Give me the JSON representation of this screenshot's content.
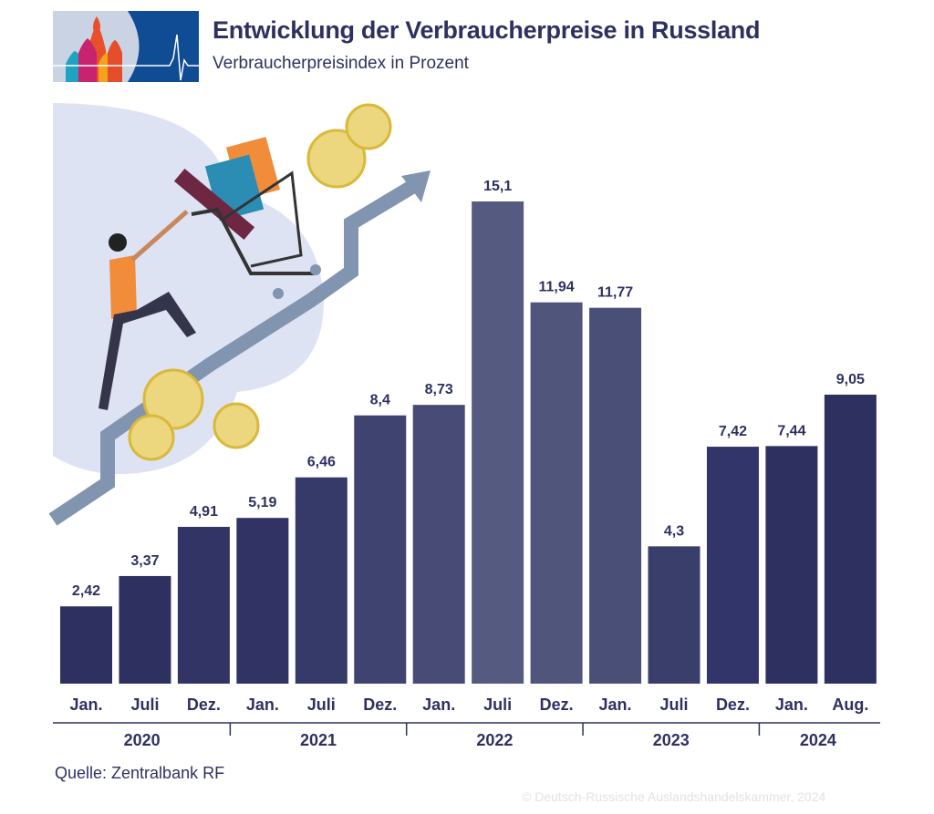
{
  "header": {
    "title": "Entwicklung der Verbraucherpreise in Russland",
    "subtitle": "Verbraucherpreisindex in Prozent"
  },
  "footer": {
    "source": "Quelle: Zentralbank RF",
    "copyright": "© Deutsch-Russische Auslandshandelskammer, 2024"
  },
  "chart_data": {
    "type": "bar",
    "title": "Entwicklung der Verbraucherpreise in Russland",
    "subtitle": "Verbraucherpreisindex in Prozent",
    "categories": [
      "Jan.",
      "Juli",
      "Dez.",
      "Jan.",
      "Juli",
      "Dez.",
      "Jan.",
      "Juli",
      "Dez.",
      "Jan.",
      "Juli",
      "Dez.",
      "Jan.",
      "Aug."
    ],
    "years": [
      {
        "label": "2020",
        "count": 3
      },
      {
        "label": "2021",
        "count": 3
      },
      {
        "label": "2022",
        "count": 3
      },
      {
        "label": "2023",
        "count": 3
      },
      {
        "label": "2024",
        "count": 2
      }
    ],
    "values": [
      2.42,
      3.37,
      4.91,
      5.19,
      6.46,
      8.4,
      8.73,
      15.1,
      11.94,
      11.77,
      4.3,
      7.42,
      7.44,
      9.05
    ],
    "value_labels": [
      "2,42",
      "3,37",
      "4,91",
      "5,19",
      "6,46",
      "8,4",
      "8,73",
      "15,1",
      "11,94",
      "11,77",
      "4,3",
      "7,42",
      "7,44",
      "9,05"
    ],
    "bar_colors": [
      "#2e3160",
      "#2e3160",
      "#313464",
      "#303363",
      "#363a68",
      "#3f4370",
      "#474b76",
      "#555a80",
      "#50557c",
      "#4a4f78",
      "#3a3e6b",
      "#32356a",
      "#2e3160",
      "#2e3160"
    ],
    "ylim": [
      0,
      15.1
    ],
    "grid": false,
    "legend": "none"
  }
}
